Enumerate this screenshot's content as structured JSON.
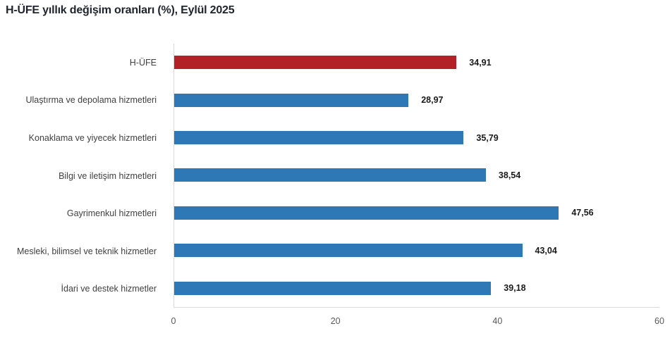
{
  "title": "H-ÜFE yıllık değişim oranları (%), Eylül 2025",
  "colors": {
    "bar_red": "#B22126",
    "bar_blue": "#2E79B5",
    "axis_line": "#D9D9D9",
    "tick_text": "#595959",
    "label_text": "#404040",
    "value_text": "#1A1A1A",
    "title_text": "#20242D"
  },
  "chart_data": {
    "type": "bar",
    "orientation": "horizontal",
    "title": "H-ÜFE yıllık değişim oranları (%), Eylül 2025",
    "xlabel": "",
    "ylabel": "",
    "xlim": [
      0,
      60
    ],
    "x_ticks": [
      "0",
      "20",
      "40",
      "60"
    ],
    "grid": false,
    "legend": false,
    "categories": [
      "H-ÜFE",
      "Ulaştırma ve depolama hizmetleri",
      "Konaklama ve yiyecek hizmetleri",
      "Bilgi ve iletişim hizmetleri",
      "Gayrimenkul hizmetleri",
      "Mesleki, bilimsel ve teknik hizmetler",
      "İdari ve destek hizmetler"
    ],
    "values": [
      34.91,
      28.97,
      35.79,
      38.54,
      47.56,
      43.04,
      39.18
    ],
    "value_labels": [
      "34,91",
      "28,97",
      "35,79",
      "38,54",
      "47,56",
      "43,04",
      "39,18"
    ],
    "bar_colors": [
      "#B22126",
      "#2E79B5",
      "#2E79B5",
      "#2E79B5",
      "#2E79B5",
      "#2E79B5",
      "#2E79B5"
    ]
  }
}
